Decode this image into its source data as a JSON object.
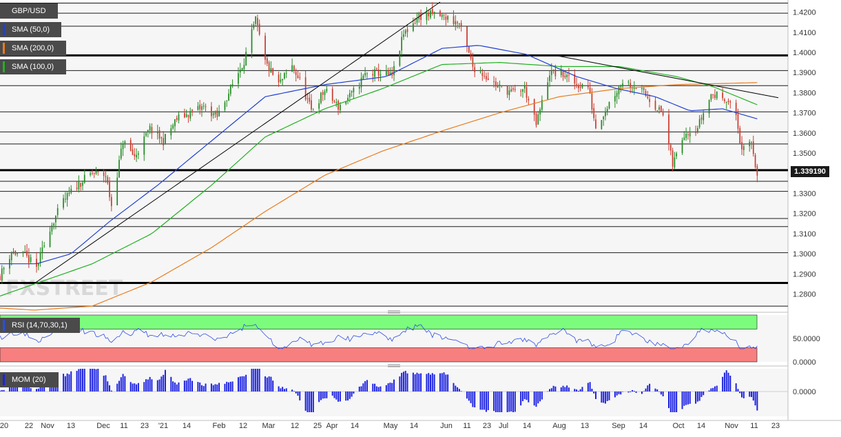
{
  "instrument": "GBP/USD",
  "last_price": "1.339190",
  "colors": {
    "candle_up": "#228B22",
    "candle_down": "#cc3b2e",
    "sma50": "#2040d0",
    "sma200": "#e87c1e",
    "sma100": "#22b022",
    "rsi_overbought_band": "#7cfc7c",
    "rsi_oversold_band": "#f77f7f",
    "rsi_line": "#2b4de6",
    "mom_bar": "#1c22e0",
    "panel_bg": "#f6f6f6"
  },
  "legend": {
    "price": "GBP/USD",
    "sma50": "SMA (50,0)",
    "sma200": "SMA (200,0)",
    "sma100": "SMA (100,0)",
    "rsi": "RSI (14,70,30,1)",
    "mom": "MOM (20)"
  },
  "watermark": "FXSTREET",
  "chart_data": [
    {
      "type": "candlestick",
      "title": "GBP/USD",
      "y_tick_labels": [
        "1.4200",
        "1.4100",
        "1.4000",
        "1.3900",
        "1.3800",
        "1.3700",
        "1.3600",
        "1.3500",
        "1.3300",
        "1.3200",
        "1.3100",
        "1.3000",
        "1.2900",
        "1.2800"
      ],
      "y_ticks": [
        1.42,
        1.41,
        1.4,
        1.39,
        1.38,
        1.37,
        1.36,
        1.35,
        1.33,
        1.32,
        1.31,
        1.3,
        1.29,
        1.28
      ],
      "ylim": [
        1.273,
        1.425
      ],
      "x_tick_labels": [
        "'20",
        "22",
        "Nov",
        "13",
        "Dec",
        "11",
        "23",
        "'21",
        "14",
        "Feb",
        "12",
        "Mar",
        "12",
        "25",
        "Apr",
        "14",
        "May",
        "14",
        "Jun",
        "11",
        "23",
        "Jul",
        "14",
        "Aug",
        "13",
        "Sep",
        "14",
        "Oct",
        "14",
        "Nov",
        "11",
        "23"
      ],
      "grid": true,
      "horizontal_levels_thick": [
        1.3985,
        1.3415,
        1.2855
      ],
      "horizontal_levels": [
        1.4245,
        1.4195,
        1.413,
        1.391,
        1.3835,
        1.3705,
        1.3605,
        1.3545,
        1.336,
        1.331,
        1.3175,
        1.3135,
        1.3005,
        1.274
      ],
      "trendlines": [
        {
          "from": {
            "x": "2020-11-02",
            "y": 1.286
          },
          "to": {
            "x": "2021-05-31",
            "y": 1.425
          }
        },
        {
          "from": {
            "x": "2021-07-30",
            "y": 1.3985
          },
          "to": {
            "x": "2021-11-23",
            "y": 1.3775
          }
        }
      ],
      "series_anchor_points": {
        "close": [
          [
            "2020-10-14",
            1.289
          ],
          [
            "2020-10-20",
            1.301
          ],
          [
            "2020-10-27",
            1.299
          ],
          [
            "2020-11-02",
            1.293
          ],
          [
            "2020-11-09",
            1.313
          ],
          [
            "2020-11-16",
            1.326
          ],
          [
            "2020-11-23",
            1.334
          ],
          [
            "2020-12-01",
            1.34
          ],
          [
            "2020-12-08",
            1.339
          ],
          [
            "2020-12-11",
            1.324
          ],
          [
            "2020-12-17",
            1.356
          ],
          [
            "2020-12-23",
            1.348
          ],
          [
            "2020-12-31",
            1.362
          ],
          [
            "2021-01-07",
            1.356
          ],
          [
            "2021-01-14",
            1.367
          ],
          [
            "2021-01-21",
            1.37
          ],
          [
            "2021-01-28",
            1.373
          ],
          [
            "2021-02-04",
            1.368
          ],
          [
            "2021-02-12",
            1.384
          ],
          [
            "2021-02-18",
            1.396
          ],
          [
            "2021-02-24",
            1.416
          ],
          [
            "2021-03-01",
            1.395
          ],
          [
            "2021-03-08",
            1.384
          ],
          [
            "2021-03-15",
            1.393
          ],
          [
            "2021-03-19",
            1.386
          ],
          [
            "2021-03-25",
            1.371
          ],
          [
            "2021-04-01",
            1.381
          ],
          [
            "2021-04-08",
            1.373
          ],
          [
            "2021-04-15",
            1.379
          ],
          [
            "2021-04-22",
            1.389
          ],
          [
            "2021-04-29",
            1.39
          ],
          [
            "2021-05-06",
            1.388
          ],
          [
            "2021-05-12",
            1.409
          ],
          [
            "2021-05-20",
            1.418
          ],
          [
            "2021-05-28",
            1.419
          ],
          [
            "2021-06-04",
            1.417
          ],
          [
            "2021-06-10",
            1.414
          ],
          [
            "2021-06-17",
            1.393
          ],
          [
            "2021-06-23",
            1.389
          ],
          [
            "2021-06-30",
            1.383
          ],
          [
            "2021-07-08",
            1.38
          ],
          [
            "2021-07-14",
            1.382
          ],
          [
            "2021-07-20",
            1.364
          ],
          [
            "2021-07-27",
            1.39
          ],
          [
            "2021-08-03",
            1.389
          ],
          [
            "2021-08-10",
            1.384
          ],
          [
            "2021-08-16",
            1.383
          ],
          [
            "2021-08-20",
            1.363
          ],
          [
            "2021-08-27",
            1.375
          ],
          [
            "2021-09-03",
            1.386
          ],
          [
            "2021-09-10",
            1.383
          ],
          [
            "2021-09-17",
            1.377
          ],
          [
            "2021-09-24",
            1.369
          ],
          [
            "2021-09-29",
            1.344
          ],
          [
            "2021-10-05",
            1.36
          ],
          [
            "2021-10-12",
            1.363
          ],
          [
            "2021-10-19",
            1.379
          ],
          [
            "2021-10-26",
            1.378
          ],
          [
            "2021-11-01",
            1.369
          ],
          [
            "2021-11-04",
            1.35
          ],
          [
            "2021-11-09",
            1.356
          ],
          [
            "2021-11-12",
            1.3392
          ]
        ],
        "sma50": [
          [
            "2020-10-14",
            1.295
          ],
          [
            "2020-11-02",
            1.295
          ],
          [
            "2020-11-20",
            1.3
          ],
          [
            "2020-12-10",
            1.316
          ],
          [
            "2021-01-04",
            1.334
          ],
          [
            "2021-02-01",
            1.356
          ],
          [
            "2021-03-01",
            1.378
          ],
          [
            "2021-04-01",
            1.384
          ],
          [
            "2021-05-03",
            1.388
          ],
          [
            "2021-06-01",
            1.402
          ],
          [
            "2021-06-20",
            1.4035
          ],
          [
            "2021-07-15",
            1.399
          ],
          [
            "2021-08-10",
            1.388
          ],
          [
            "2021-08-31",
            1.382
          ],
          [
            "2021-09-20",
            1.378
          ],
          [
            "2021-10-08",
            1.371
          ],
          [
            "2021-10-25",
            1.372
          ],
          [
            "2021-11-12",
            1.367
          ]
        ],
        "sma100": [
          [
            "2020-10-14",
            1.279
          ],
          [
            "2020-11-01",
            1.285
          ],
          [
            "2020-12-01",
            1.295
          ],
          [
            "2021-01-01",
            1.31
          ],
          [
            "2021-02-01",
            1.334
          ],
          [
            "2021-03-01",
            1.358
          ],
          [
            "2021-04-01",
            1.372
          ],
          [
            "2021-05-01",
            1.382
          ],
          [
            "2021-06-01",
            1.394
          ],
          [
            "2021-07-01",
            1.395
          ],
          [
            "2021-08-01",
            1.393
          ],
          [
            "2021-09-01",
            1.393
          ],
          [
            "2021-10-01",
            1.388
          ],
          [
            "2021-10-20",
            1.383
          ],
          [
            "2021-11-12",
            1.374
          ]
        ],
        "sma200": [
          [
            "2020-10-14",
            1.273
          ],
          [
            "2020-11-01",
            1.272
          ],
          [
            "2020-12-01",
            1.274
          ],
          [
            "2021-01-01",
            1.286
          ],
          [
            "2021-02-01",
            1.303
          ],
          [
            "2021-03-01",
            1.321
          ],
          [
            "2021-04-01",
            1.339
          ],
          [
            "2021-05-01",
            1.351
          ],
          [
            "2021-06-01",
            1.361
          ],
          [
            "2021-07-01",
            1.37
          ],
          [
            "2021-08-01",
            1.378
          ],
          [
            "2021-09-01",
            1.382
          ],
          [
            "2021-10-01",
            1.384
          ],
          [
            "2021-11-12",
            1.385
          ]
        ]
      }
    },
    {
      "type": "line",
      "title": "RSI (14,70,30,1)",
      "y_tick_labels": [
        "50.0000",
        "0.0000"
      ],
      "y_ticks": [
        50,
        0
      ],
      "ylim": [
        0,
        100
      ],
      "overbought": 70,
      "oversold": 30,
      "last_value": 34
    },
    {
      "type": "bar",
      "title": "MOM (20)",
      "y_tick_labels": [
        "0.0000"
      ],
      "y_ticks": [
        0
      ]
    }
  ]
}
